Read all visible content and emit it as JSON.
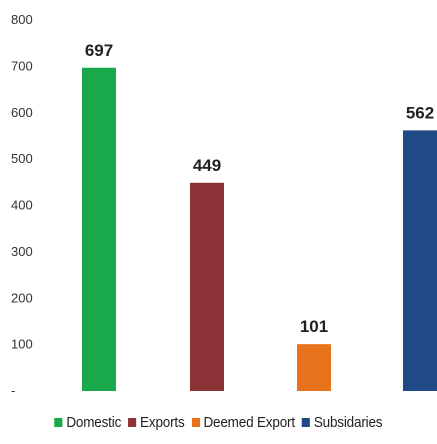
{
  "chart_data": {
    "type": "bar",
    "categories": [
      "Domestic",
      "Exports",
      "Deemed Export",
      "Subsidaries"
    ],
    "values": [
      697,
      449,
      101,
      562
    ],
    "data_labels": [
      "697",
      "449",
      "101",
      "562"
    ],
    "colors": [
      "#19a84a",
      "#8c3338",
      "#e8711c",
      "#1f4a86"
    ],
    "ylim": [
      0,
      800
    ],
    "yticks": [
      "800",
      "700",
      "600",
      "500",
      "400",
      "300",
      "200",
      "100",
      "-"
    ],
    "grid": false,
    "legend": {
      "position": "bottom",
      "entries": [
        "Domestic",
        "Exports",
        "Deemed Export",
        "Subsidaries"
      ]
    },
    "title": "",
    "xlabel": "",
    "ylabel": ""
  }
}
